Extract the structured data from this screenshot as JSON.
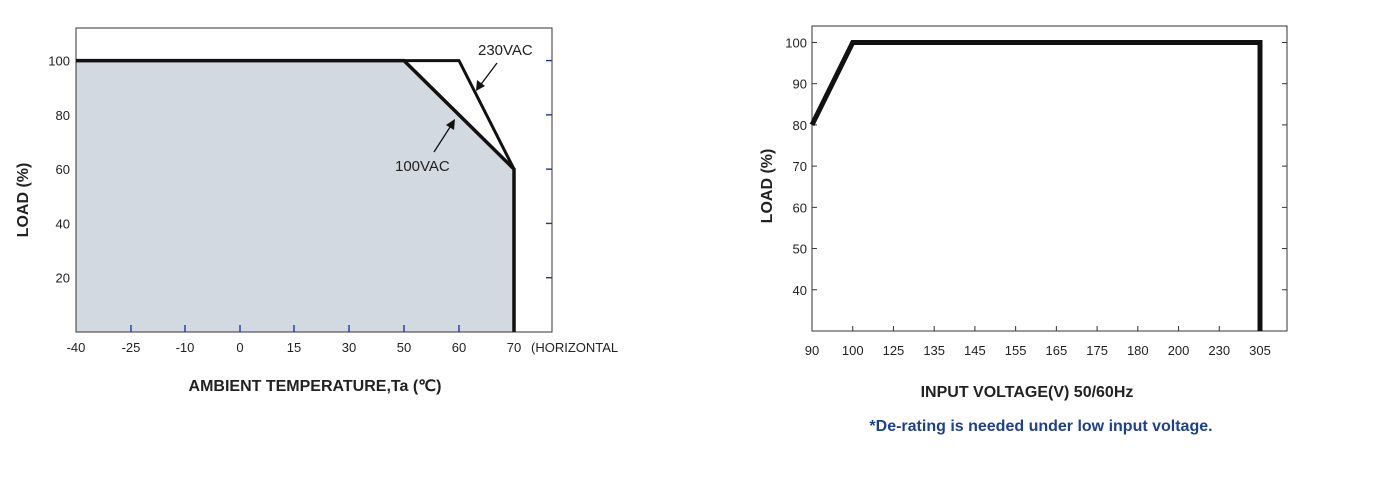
{
  "chart_data": [
    {
      "type": "area",
      "title": "",
      "xlabel": "AMBIENT TEMPERATURE,Ta (℃)",
      "ylabel": "LOAD (%)",
      "x_ticks": [
        -40,
        -25,
        -10,
        0,
        15,
        30,
        50,
        60,
        70
      ],
      "x_suffix_label": "(HORIZONTAL",
      "y_ticks": [
        20,
        40,
        60,
        80,
        100
      ],
      "ylim": [
        0,
        112
      ],
      "shaded_area": [
        [
          -40,
          100
        ],
        [
          50,
          100
        ],
        [
          70,
          60
        ],
        [
          70,
          0
        ],
        [
          -40,
          0
        ]
      ],
      "series": [
        {
          "name": "230VAC",
          "x": [
            -40,
            60,
            70,
            70
          ],
          "y": [
            100,
            100,
            60,
            0
          ]
        },
        {
          "name": "100VAC",
          "x": [
            -40,
            50,
            70,
            70
          ],
          "y": [
            100,
            100,
            60,
            0
          ]
        }
      ],
      "annotations": [
        "230VAC",
        "100VAC"
      ],
      "colors": {
        "area": "#d3d9e0",
        "line": "#111111",
        "tick": "#2233aa"
      }
    },
    {
      "type": "line",
      "title": "",
      "xlabel": "INPUT VOLTAGE(V) 50/60Hz",
      "ylabel": "LOAD (%)",
      "x_categories": [
        "90",
        "100",
        "125",
        "135",
        "145",
        "155",
        "165",
        "175",
        "180",
        "200",
        "230",
        "305"
      ],
      "y_ticks": [
        40,
        50,
        60,
        70,
        80,
        90,
        100
      ],
      "ylim": [
        30,
        104
      ],
      "series": [
        {
          "x": [
            "90",
            "100",
            "305",
            "305"
          ],
          "y": [
            80,
            100,
            100,
            30
          ]
        }
      ],
      "colors": {
        "line": "#111111"
      }
    }
  ],
  "note": {
    "text": "*De-rating is needed under low input voltage.",
    "color": "#1f3f8f"
  }
}
